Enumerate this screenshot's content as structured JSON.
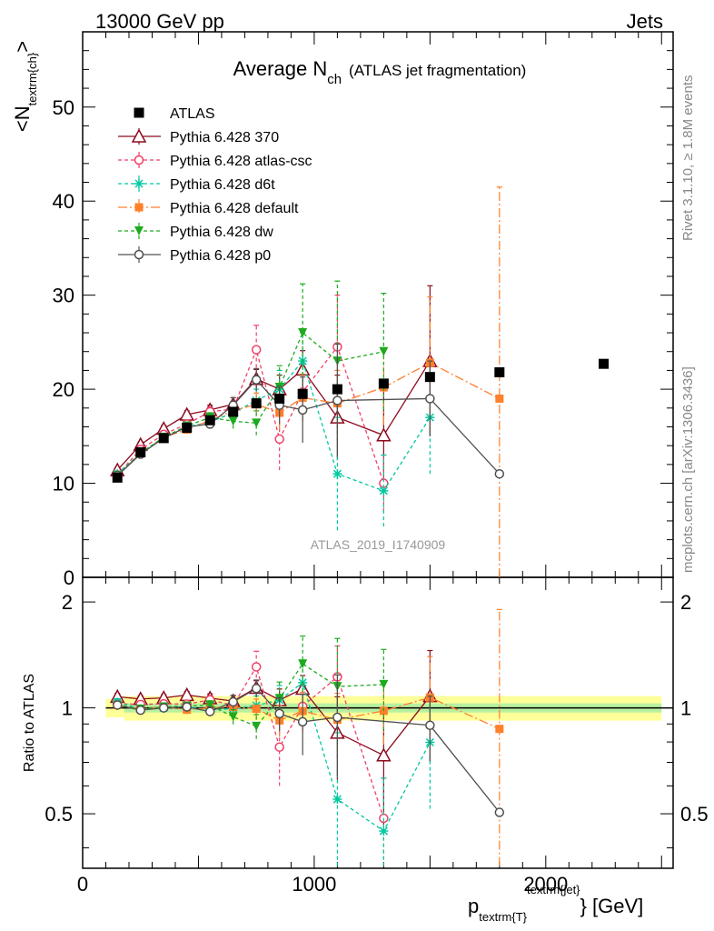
{
  "header": {
    "left": "13000 GeV pp",
    "right": "Jets"
  },
  "side": {
    "rivet": "Rivet 3.1.10, ≥ 1.8M events",
    "mcplots": "mcplots.cern.ch [arXiv:1306.3436]"
  },
  "chart_data": {
    "type": "scatter",
    "title_main": "Average N",
    "title_sub": "ch",
    "title_paren": "(ATLAS jet fragmentation)",
    "ylabel_main": "<N",
    "ylabel_sub": "textrm{ch}",
    "ylabel_close": ">",
    "xlabel_main": "p",
    "xlabel_sub": "textrm{T}",
    "xlabel_sup": "textrm{jet}",
    "xlabel_unit": "} [GeV]",
    "ratio_ylabel": "Ratio to ATLAS",
    "watermark": "ATLAS_2019_I1740909",
    "xlim": [
      0,
      2550
    ],
    "ylim": [
      0,
      58
    ],
    "ratio_ylim": [
      0.35,
      2.35
    ],
    "x_ticks": [
      0,
      1000,
      2000
    ],
    "x_tick_labels": [
      "0",
      "1000",
      "2000"
    ],
    "y_ticks": [
      0,
      10,
      20,
      30,
      40,
      50
    ],
    "y_tick_labels": [
      "0",
      "10",
      "20",
      "30",
      "40",
      "50"
    ],
    "ratio_ticks": [
      0.5,
      1,
      2
    ],
    "ratio_tick_labels": [
      "0.5",
      "1",
      "2"
    ],
    "data": {
      "name": "ATLAS",
      "x": [
        150,
        250,
        350,
        450,
        550,
        650,
        750,
        850,
        950,
        1100,
        1300,
        1500,
        1800,
        2250
      ],
      "y": [
        10.6,
        13.3,
        14.8,
        15.9,
        16.7,
        17.6,
        18.5,
        19.0,
        19.5,
        20.0,
        20.6,
        21.3,
        21.8,
        22.7
      ],
      "band_lo": [
        0.94,
        0.95,
        0.955,
        0.96,
        0.965,
        0.97,
        0.97,
        0.975,
        0.975,
        0.975,
        0.975,
        0.975,
        0.975,
        0.975
      ],
      "band_hi": [
        1.06,
        1.05,
        1.045,
        1.04,
        1.035,
        1.03,
        1.03,
        1.025,
        1.025,
        1.025,
        1.025,
        1.025,
        1.025,
        1.025
      ]
    },
    "series": [
      {
        "name": "Pythia 6.428 370",
        "color": "#8b0a1e",
        "dash": "",
        "marker": "triangle-open",
        "x": [
          150,
          250,
          350,
          450,
          550,
          650,
          750,
          850,
          950,
          1100,
          1300,
          1500
        ],
        "y": [
          11.4,
          14.1,
          15.8,
          17.3,
          17.8,
          18.4,
          21.1,
          20.0,
          22.1,
          17.0,
          15.1,
          23.0
        ],
        "err": [
          0.25,
          0.3,
          0.35,
          0.4,
          0.5,
          0.7,
          1.0,
          1.5,
          2.0,
          4.5,
          5.5,
          8.0
        ]
      },
      {
        "name": "Pythia 6.428 atlas-csc",
        "color": "#ef4068",
        "dash": "4,3",
        "marker": "circle-open",
        "x": [
          150,
          250,
          350,
          450,
          550,
          650,
          750,
          850,
          950,
          1100,
          1300
        ],
        "y": [
          10.9,
          13.6,
          15.2,
          16.3,
          17.6,
          17.9,
          24.2,
          14.7,
          19.7,
          24.5,
          10.0
        ],
        "err": [
          0.25,
          0.3,
          0.35,
          0.4,
          0.5,
          0.8,
          2.6,
          3.3,
          3.0,
          5.5,
          3.0
        ]
      },
      {
        "name": "Pythia 6.428 d6t",
        "color": "#00c8a0",
        "dash": "4,3",
        "marker": "star",
        "x": [
          150,
          250,
          350,
          450,
          550,
          650,
          750,
          850,
          950,
          1100,
          1300,
          1500
        ],
        "y": [
          11.0,
          13.2,
          14.8,
          16.0,
          16.5,
          17.5,
          18.8,
          20.0,
          23.0,
          11.0,
          9.2,
          17.0
        ],
        "err": [
          0.25,
          0.3,
          0.35,
          0.4,
          0.5,
          0.8,
          1.2,
          2.0,
          3.0,
          6.0,
          3.8,
          6.0
        ]
      },
      {
        "name": "Pythia 6.428 default",
        "color": "#ff7f2a",
        "dash": "10,3,2,3",
        "marker": "square",
        "x": [
          150,
          250,
          350,
          450,
          550,
          650,
          750,
          850,
          950,
          1100,
          1300,
          1500,
          1800
        ],
        "y": [
          10.8,
          13.2,
          14.9,
          15.7,
          16.7,
          17.7,
          18.4,
          17.5,
          19.1,
          18.5,
          20.2,
          22.8,
          19.0
        ],
        "err": [
          0.25,
          0.3,
          0.35,
          0.4,
          0.5,
          0.8,
          1.2,
          1.8,
          2.5,
          3.5,
          4.0,
          7.0,
          22.5
        ]
      },
      {
        "name": "Pythia 6.428 dw",
        "color": "#1eaa1e",
        "dash": "4,3",
        "marker": "triangle-down",
        "x": [
          150,
          250,
          350,
          450,
          550,
          650,
          750,
          850,
          950,
          1100,
          1300
        ],
        "y": [
          10.8,
          13.2,
          14.9,
          16.1,
          17.0,
          16.6,
          16.4,
          20.2,
          26.0,
          23.0,
          24.0
        ],
        "err": [
          0.25,
          0.3,
          0.35,
          0.4,
          0.5,
          0.8,
          1.3,
          2.3,
          5.2,
          8.5,
          6.2
        ]
      },
      {
        "name": "Pythia 6.428 p0",
        "color": "#505050",
        "dash": "",
        "marker": "circle-open",
        "x": [
          150,
          250,
          350,
          450,
          550,
          650,
          750,
          850,
          950,
          1100,
          1500,
          1800
        ],
        "y": [
          10.8,
          13.1,
          14.8,
          16.0,
          16.3,
          18.3,
          21.0,
          18.3,
          17.8,
          18.8,
          19.0,
          11.0
        ],
        "err": [
          0.25,
          0.3,
          0.35,
          0.4,
          0.5,
          0.8,
          1.2,
          2.0,
          3.5,
          6.0,
          4.0,
          0
        ]
      }
    ]
  }
}
